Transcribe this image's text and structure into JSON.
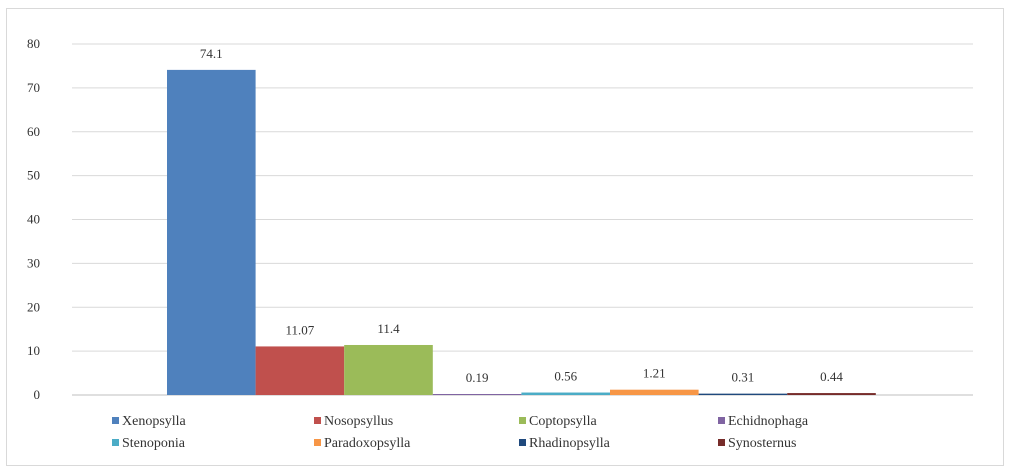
{
  "chart_data": {
    "type": "bar",
    "title": "",
    "xlabel": "",
    "ylabel": "",
    "ylim": [
      0,
      80
    ],
    "yticks": [
      0,
      10,
      20,
      30,
      40,
      50,
      60,
      70,
      80
    ],
    "grid": true,
    "legend_position": "bottom",
    "series": [
      {
        "name": "Xenopsylla",
        "value": 74.1,
        "label": "74.1",
        "color": "#4F81BD"
      },
      {
        "name": "Nosopsyllus",
        "value": 11.07,
        "label": "11.07",
        "color": "#C0504D"
      },
      {
        "name": "Coptopsylla",
        "value": 11.4,
        "label": "11.4",
        "color": "#9BBB59"
      },
      {
        "name": "Echidnophaga",
        "value": 0.19,
        "label": "0.19",
        "color": "#8064A2"
      },
      {
        "name": "Stenoponia",
        "value": 0.56,
        "label": "0.56",
        "color": "#4BACC6"
      },
      {
        "name": "Paradoxopsylla",
        "value": 1.21,
        "label": "1.21",
        "color": "#F79646"
      },
      {
        "name": "Rhadinopsylla",
        "value": 0.31,
        "label": "0.31",
        "color": "#1F497D"
      },
      {
        "name": "Synosternus",
        "value": 0.44,
        "label": "0.44",
        "color": "#772C2A"
      }
    ]
  }
}
